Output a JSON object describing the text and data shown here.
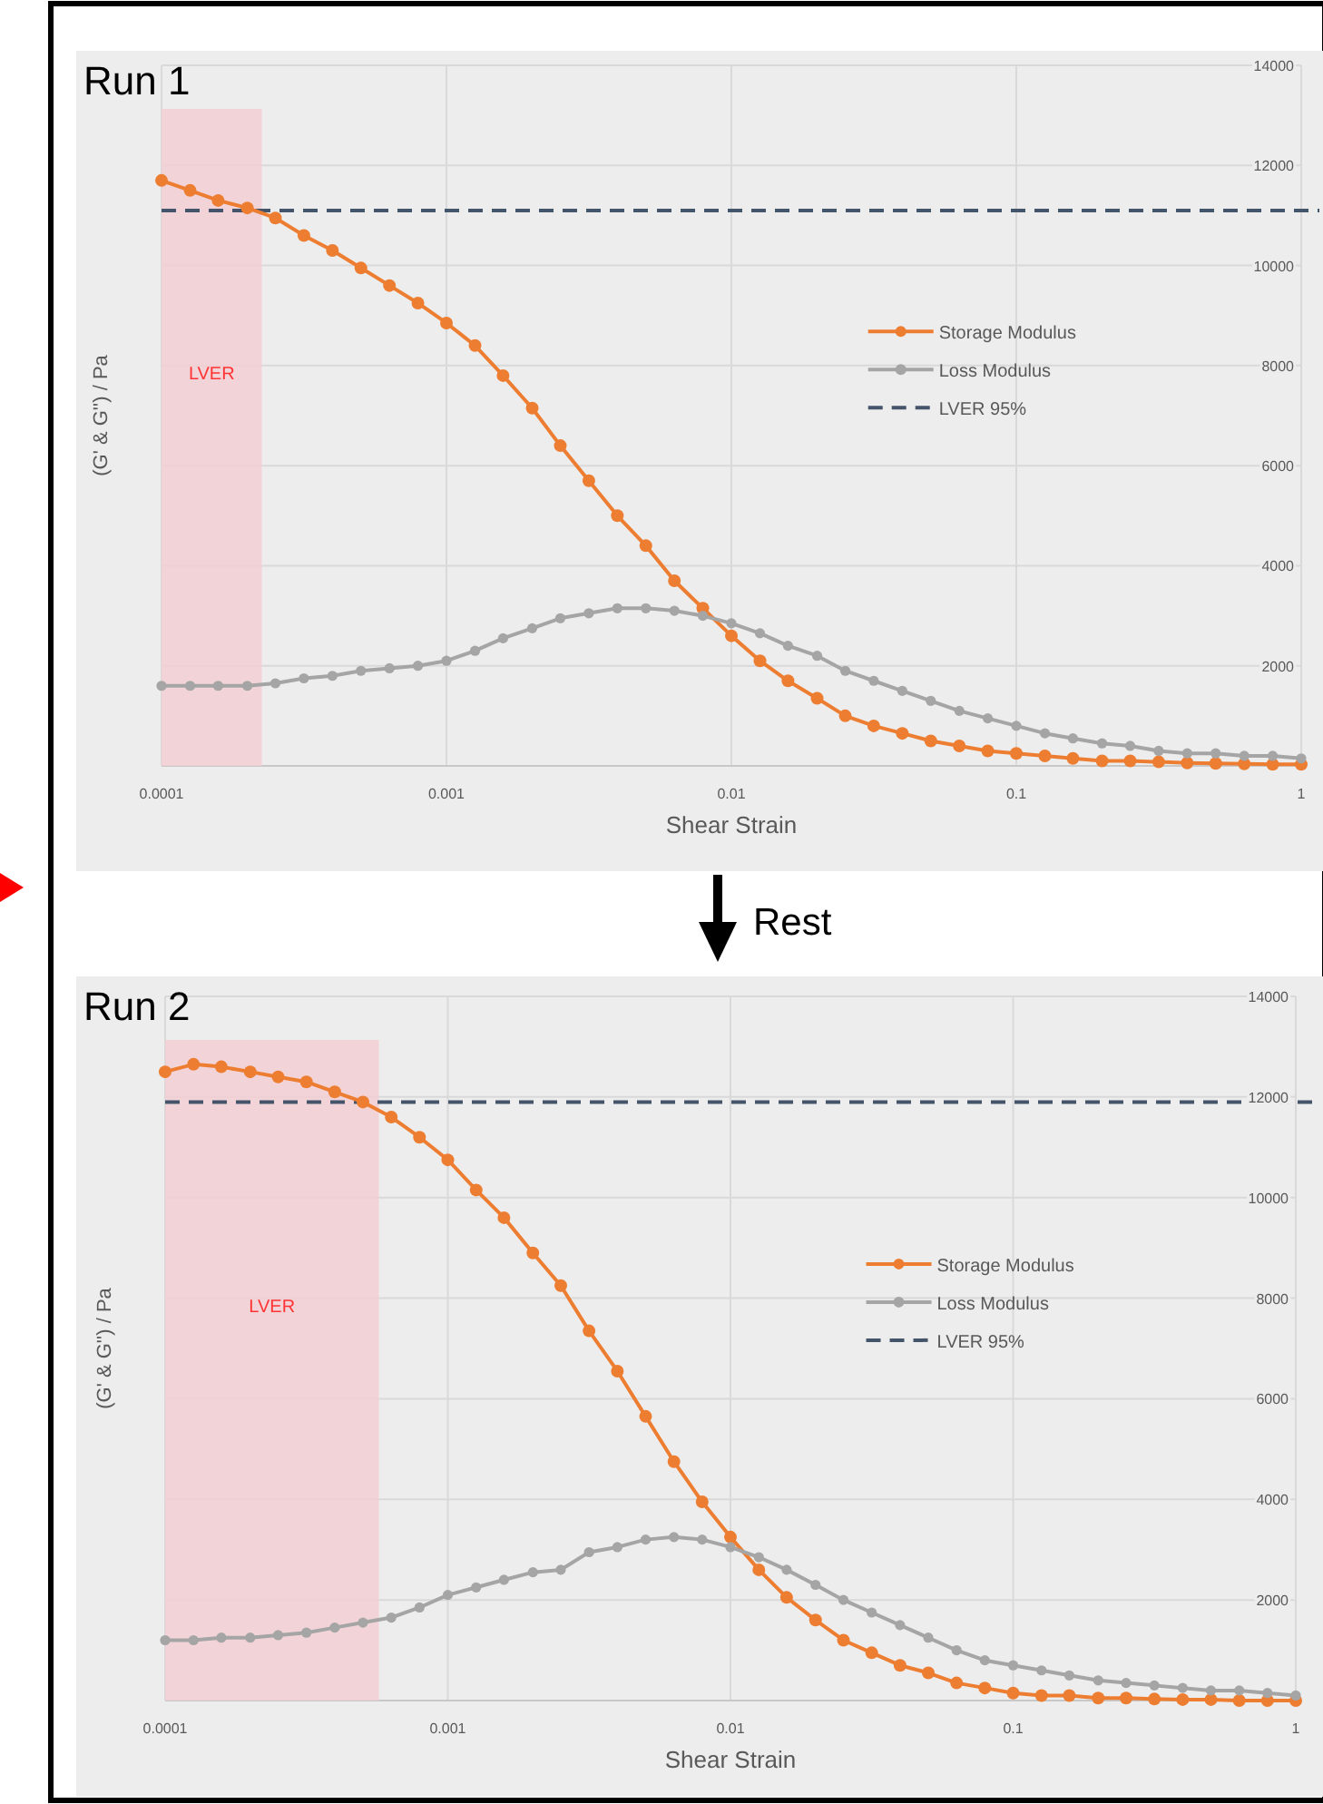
{
  "chart_data": [
    {
      "type": "line",
      "title": "Run 1",
      "xlabel": "Shear Strain",
      "ylabel": "(G' & G'') / Pa",
      "log": "x",
      "grid": true,
      "legend": "right",
      "marker": "circle",
      "xlim": [
        0.0001,
        1
      ],
      "xticks": [
        0.0001,
        0.001,
        0.01,
        0.1,
        1
      ],
      "ylim": [
        0,
        14000
      ],
      "yticks": [
        2000,
        4000,
        6000,
        8000,
        10000,
        12000,
        14000
      ],
      "x": [
        0.0001,
        0.000126,
        0.000158,
        0.0002,
        0.000251,
        0.000316,
        0.000398,
        0.000501,
        0.000631,
        0.000794,
        0.001,
        0.00126,
        0.00158,
        0.002,
        0.00251,
        0.00316,
        0.00398,
        0.00501,
        0.00631,
        0.00794,
        0.01,
        0.0126,
        0.0158,
        0.02,
        0.0251,
        0.0316,
        0.0398,
        0.0501,
        0.0631,
        0.0794,
        0.1,
        0.126,
        0.158,
        0.2,
        0.251,
        0.316,
        0.398,
        0.501,
        0.631,
        0.794,
        1
      ],
      "series": [
        {
          "name": "Storage Modulus",
          "color": "#ed7d31",
          "values": [
            11700,
            11500,
            11300,
            11150,
            10950,
            10600,
            10300,
            9950,
            9600,
            9250,
            8850,
            8400,
            7800,
            7150,
            6400,
            5700,
            5000,
            4400,
            3700,
            3150,
            2600,
            2100,
            1700,
            1350,
            1000,
            800,
            650,
            500,
            400,
            300,
            250,
            200,
            150,
            100,
            100,
            80,
            60,
            50,
            40,
            30,
            30
          ]
        },
        {
          "name": "Loss Modulus",
          "color": "#a5a5a5",
          "values": [
            1600,
            1600,
            1600,
            1600,
            1650,
            1750,
            1800,
            1900,
            1950,
            2000,
            2100,
            2300,
            2550,
            2750,
            2950,
            3050,
            3150,
            3150,
            3100,
            3000,
            2850,
            2650,
            2400,
            2200,
            1900,
            1700,
            1500,
            1300,
            1100,
            950,
            800,
            650,
            550,
            450,
            400,
            300,
            250,
            250,
            200,
            200,
            150
          ]
        }
      ],
      "ref_lines": [
        {
          "axis": "y",
          "value": 11100,
          "label": "LVER 95%",
          "color": "#44546a",
          "line_style": "dashed"
        }
      ],
      "bands": [
        {
          "axis": "x",
          "from": 0.0001,
          "to": 0.000225,
          "label": "LVER",
          "color": "#f2cfd3"
        }
      ],
      "annotations": [
        "Rest"
      ]
    },
    {
      "type": "line",
      "title": "Run 2",
      "xlabel": "Shear Strain",
      "ylabel": "(G' & G'') / Pa",
      "log": "x",
      "grid": true,
      "legend": "right",
      "marker": "circle",
      "xlim": [
        0.0001,
        1
      ],
      "xticks": [
        0.0001,
        0.001,
        0.01,
        0.1,
        1
      ],
      "ylim": [
        0,
        14000
      ],
      "yticks": [
        2000,
        4000,
        6000,
        8000,
        10000,
        12000,
        14000
      ],
      "x": [
        0.0001,
        0.000126,
        0.000158,
        0.0002,
        0.000251,
        0.000316,
        0.000398,
        0.000501,
        0.000631,
        0.000794,
        0.001,
        0.00126,
        0.00158,
        0.002,
        0.00251,
        0.00316,
        0.00398,
        0.00501,
        0.00631,
        0.00794,
        0.01,
        0.0126,
        0.0158,
        0.02,
        0.0251,
        0.0316,
        0.0398,
        0.0501,
        0.0631,
        0.0794,
        0.1,
        0.126,
        0.158,
        0.2,
        0.251,
        0.316,
        0.398,
        0.501,
        0.631,
        0.794,
        1
      ],
      "series": [
        {
          "name": "Storage Modulus",
          "color": "#ed7d31",
          "values": [
            12500,
            12650,
            12600,
            12500,
            12400,
            12300,
            12100,
            11900,
            11600,
            11200,
            10750,
            10150,
            9600,
            8900,
            8250,
            7350,
            6550,
            5650,
            4750,
            3950,
            3250,
            2600,
            2050,
            1600,
            1200,
            950,
            700,
            550,
            350,
            250,
            150,
            100,
            100,
            50,
            50,
            30,
            20,
            20,
            0,
            0,
            0
          ]
        },
        {
          "name": "Loss Modulus",
          "color": "#a5a5a5",
          "values": [
            1200,
            1200,
            1250,
            1250,
            1300,
            1350,
            1450,
            1550,
            1650,
            1850,
            2100,
            2250,
            2400,
            2550,
            2600,
            2950,
            3050,
            3200,
            3250,
            3200,
            3050,
            2850,
            2600,
            2300,
            2000,
            1750,
            1500,
            1250,
            1000,
            800,
            700,
            600,
            500,
            400,
            350,
            300,
            250,
            200,
            200,
            150,
            100
          ]
        }
      ],
      "ref_lines": [
        {
          "axis": "y",
          "value": 11900,
          "label": "LVER 95%",
          "color": "#44546a",
          "line_style": "dashed"
        }
      ],
      "bands": [
        {
          "axis": "x",
          "from": 0.0001,
          "to": 0.00057,
          "label": "LVER",
          "color": "#f2cfd3"
        }
      ]
    }
  ]
}
